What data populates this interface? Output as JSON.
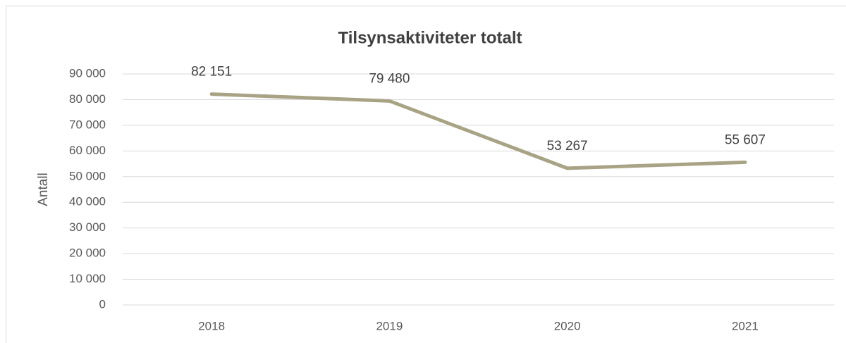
{
  "chart_data": {
    "type": "line",
    "title": "Tilsynsaktiviteter totalt",
    "y_label": "Antall",
    "categories": [
      "2018",
      "2019",
      "2020",
      "2021"
    ],
    "values": [
      82151,
      79480,
      53267,
      55607
    ],
    "value_labels": [
      "82 151",
      "79 480",
      "53 267",
      "55 607"
    ],
    "color": "#a9a386",
    "ylim": [
      0,
      90000
    ],
    "yticks": [
      0,
      {
        "value": 10000,
        "label": "10 000"
      },
      {
        "value": 20000,
        "label": "20 000"
      },
      {
        "value": 30000,
        "label": "30 000"
      },
      {
        "value": 40000,
        "label": "40 000"
      },
      {
        "value": 50000,
        "label": "50 000"
      },
      {
        "value": 60000,
        "label": "60 000"
      },
      {
        "value": 70000,
        "label": "70 000"
      },
      {
        "value": 80000,
        "label": "80 000"
      },
      {
        "value": 90000,
        "label": "90 000"
      }
    ],
    "grid": true
  }
}
